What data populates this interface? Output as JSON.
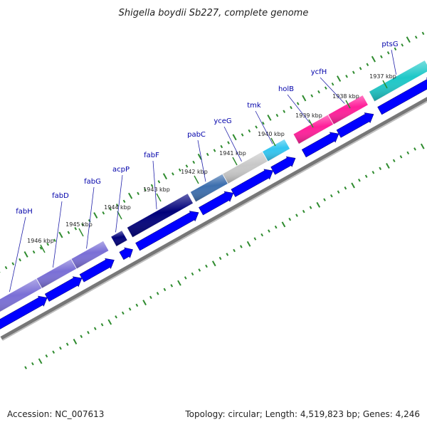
{
  "title": "Shigella boydii Sb227, complete genome",
  "footer": {
    "accession": "Accession: NC_007613",
    "summary": "Topology: circular; Length: 4,519,823 bp; Genes: 4,246"
  },
  "colors": {
    "label": "#0000aa",
    "cds_arrow": "#0000ff",
    "tick": "#2e8b2e",
    "backbone": "#777777"
  },
  "ticks": [
    {
      "label": "1937 kbp"
    },
    {
      "label": "1938 kbp"
    },
    {
      "label": "1939 kbp"
    },
    {
      "label": "1940 kbp"
    },
    {
      "label": "1941 kbp"
    },
    {
      "label": "1942 kbp"
    },
    {
      "label": "1943 kbp"
    },
    {
      "label": "1944 kbp"
    },
    {
      "label": "1945 kbp"
    },
    {
      "label": "1946 kbp"
    }
  ],
  "genes": [
    {
      "name": "ptsG",
      "color": "#1ec8c8"
    },
    {
      "name": "ycfH",
      "color": "#ff1f9a"
    },
    {
      "name": "holB",
      "color": "#ff1f9a"
    },
    {
      "name": "tmk",
      "color": "#33c5f0"
    },
    {
      "name": "yceG",
      "color": "#c8c8c8"
    },
    {
      "name": "pabC",
      "color": "#3d6fae"
    },
    {
      "name": "fabF",
      "color": "#00007a"
    },
    {
      "name": "acpP",
      "color": "#00007a"
    },
    {
      "name": "fabG",
      "color": "#7a6fd6"
    },
    {
      "name": "fabD",
      "color": "#7a6fd6"
    },
    {
      "name": "fabH",
      "color": "#7a6fd6"
    }
  ]
}
